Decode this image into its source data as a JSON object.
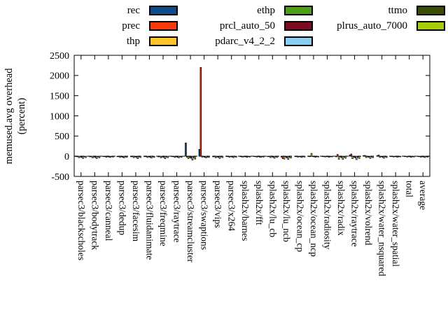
{
  "chart_data": {
    "type": "bar",
    "title": "",
    "ylabel_line1": "memused.avg overhead",
    "ylabel_line2": "(percent)",
    "ylim": [
      -500,
      2500
    ],
    "y_ticks": [
      -500,
      0,
      500,
      1000,
      1500,
      2000,
      2500
    ],
    "grid": false,
    "zero_line": "dashed",
    "legend_position": "top",
    "legend_columns": 3,
    "categories": [
      "parsec3/blackscholes",
      "parsec3/bodytrack",
      "parsec3/canneal",
      "parsec3/dedup",
      "parsec3/facesim",
      "parsec3/fluidanimate",
      "parsec3/freqmine",
      "parsec3/raytrace",
      "parsec3/streamcluster",
      "parsec3/swaptions",
      "parsec3/vips",
      "parsec3/x264",
      "splash2x/barnes",
      "splash2x/fft",
      "splash2x/lu_cb",
      "splash2x/lu_ncb",
      "splash2x/ocean_cp",
      "splash2x/ocean_ncp",
      "splash2x/radiosity",
      "splash2x/radix",
      "splash2x/raytrace",
      "splash2x/volrend",
      "splash2x/water_nsquared",
      "splash2x/water_spatial",
      "total",
      "average"
    ],
    "series": [
      {
        "name": "rec",
        "color": "#0e4a8c",
        "values": [
          -12,
          -15,
          -10,
          -12,
          -14,
          -12,
          -15,
          -12,
          330,
          170,
          -14,
          -10,
          -8,
          -10,
          -12,
          -20,
          -10,
          -10,
          -8,
          -15,
          30,
          15,
          12,
          -8,
          -8,
          -10
        ]
      },
      {
        "name": "prec",
        "color": "#f93b0a",
        "values": [
          -10,
          -12,
          -8,
          -10,
          -10,
          -10,
          -12,
          -10,
          -25,
          2200,
          -12,
          -8,
          -18,
          -8,
          -10,
          -60,
          -8,
          -8,
          -6,
          45,
          55,
          20,
          30,
          -6,
          -6,
          -8
        ]
      },
      {
        "name": "thp",
        "color": "#fcc428",
        "values": [
          -38,
          -42,
          -25,
          -30,
          -35,
          -32,
          -40,
          -30,
          -60,
          -20,
          -38,
          -25,
          -20,
          -22,
          -35,
          -70,
          -22,
          70,
          -18,
          -75,
          -60,
          -35,
          -30,
          -18,
          -20,
          -25
        ]
      },
      {
        "name": "ethp",
        "color": "#4f9e17",
        "values": [
          -15,
          -14,
          -10,
          -12,
          -12,
          -12,
          -14,
          -12,
          -30,
          -15,
          -14,
          -10,
          -8,
          -10,
          -12,
          -15,
          -10,
          -10,
          -8,
          -15,
          -20,
          -12,
          -12,
          -8,
          -8,
          -10
        ]
      },
      {
        "name": "prcl_auto_50",
        "color": "#7d0b22",
        "values": [
          -30,
          -32,
          -20,
          -25,
          -28,
          -26,
          -30,
          -24,
          -50,
          -25,
          -30,
          -20,
          -16,
          -18,
          -28,
          -40,
          -18,
          -15,
          -14,
          -35,
          -40,
          -28,
          -25,
          -14,
          -15,
          -20
        ]
      },
      {
        "name": "pdarc_v4_2_2",
        "color": "#89cdf0",
        "values": [
          -55,
          -58,
          -30,
          -40,
          -60,
          -45,
          -62,
          -40,
          -95,
          -40,
          -55,
          -35,
          -28,
          -30,
          -50,
          -80,
          -30,
          -25,
          -25,
          -80,
          -85,
          -55,
          -50,
          -25,
          -28,
          -32
        ]
      },
      {
        "name": "ttmo",
        "color": "#394d05",
        "values": [
          -12,
          -14,
          -10,
          -12,
          -14,
          -12,
          -15,
          -12,
          -35,
          -18,
          -14,
          -10,
          -8,
          -10,
          -12,
          -20,
          -10,
          -10,
          -8,
          -20,
          -25,
          -15,
          -14,
          -8,
          -8,
          -10
        ]
      },
      {
        "name": "plrus_auto_7000",
        "color": "#a6ce08",
        "values": [
          -35,
          -38,
          -22,
          -28,
          -32,
          -30,
          -35,
          -28,
          -70,
          -30,
          -34,
          -24,
          -18,
          -20,
          -30,
          -45,
          -20,
          -18,
          -16,
          -50,
          -55,
          -35,
          -32,
          -16,
          -18,
          -22
        ]
      }
    ]
  }
}
